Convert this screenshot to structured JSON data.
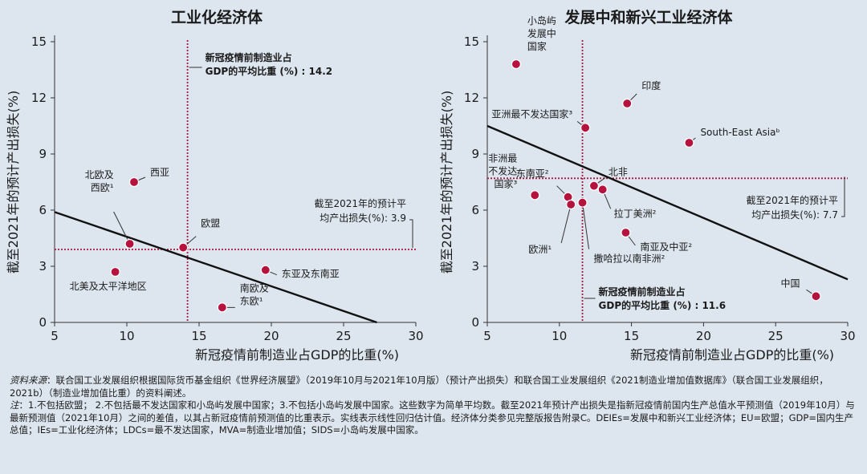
{
  "chart_data": [
    {
      "type": "scatter",
      "title": "工业化经济体",
      "xlabel": "新冠疫情前制造业占GDP的比重(%)",
      "ylabel": "截至2021年的预计产出损失(%)",
      "xlim": [
        5,
        30
      ],
      "ylim": [
        0,
        15
      ],
      "xticks": [
        "5",
        "10",
        "15",
        "20",
        "25",
        "30"
      ],
      "yticks": [
        "0",
        "3",
        "6",
        "9",
        "12",
        "15"
      ],
      "points": [
        {
          "x": 10.5,
          "y": 7.5,
          "label": [
            "西亚"
          ]
        },
        {
          "x": 10.2,
          "y": 4.2,
          "label": [
            "北欧及",
            "西欧¹"
          ]
        },
        {
          "x": 9.2,
          "y": 2.7,
          "label": [
            "北美及太平洋地区"
          ]
        },
        {
          "x": 13.9,
          "y": 4.0,
          "label": [
            "欧盟"
          ]
        },
        {
          "x": 19.6,
          "y": 2.8,
          "label": [
            "东亚及东南亚"
          ]
        },
        {
          "x": 16.6,
          "y": 0.8,
          "label": [
            "南欧及",
            "东欧¹"
          ]
        }
      ],
      "trendline": {
        "x": [
          5,
          27.3
        ],
        "y": [
          5.9,
          0
        ]
      },
      "vline": {
        "x": 14.2,
        "label": [
          "新冠疫情前制造业占",
          "GDP的平均比重 (%) : 14.2"
        ]
      },
      "hline": {
        "y": 3.9,
        "label": [
          "截至2021年的预计平",
          "均产出损失(%): 3.9"
        ]
      }
    },
    {
      "type": "scatter",
      "title": "发展中和新兴工业经济体",
      "xlabel": "新冠疫情前制造业占GDP的比重(%)",
      "ylabel": "截至2021年的预计产出损失(%)",
      "xlim": [
        5,
        30
      ],
      "ylim": [
        0,
        15
      ],
      "xticks": [
        "5",
        "10",
        "15",
        "20",
        "25",
        "30"
      ],
      "yticks": [
        "0",
        "3",
        "6",
        "9",
        "12",
        "15"
      ],
      "points": [
        {
          "x": 7.0,
          "y": 13.8,
          "label": [
            "小岛屿",
            "发展中",
            "国家"
          ]
        },
        {
          "x": 14.7,
          "y": 11.7,
          "label": [
            "印度"
          ]
        },
        {
          "x": 11.8,
          "y": 10.4,
          "label": [
            "亚洲最不发达国家³"
          ]
        },
        {
          "x": 19.0,
          "y": 9.6,
          "label": [
            "South-East Asiaᵇ"
          ]
        },
        {
          "x": 12.4,
          "y": 7.3,
          "label": [
            "北非"
          ]
        },
        {
          "x": 10.6,
          "y": 6.7,
          "label": [
            "东南亚²"
          ]
        },
        {
          "x": 13.0,
          "y": 7.1,
          "label": [
            "拉丁美洲²"
          ]
        },
        {
          "x": 8.3,
          "y": 6.8,
          "label": [
            "非洲最",
            "不发达",
            "国家³"
          ]
        },
        {
          "x": 10.8,
          "y": 6.3,
          "label": [
            "欧洲¹"
          ]
        },
        {
          "x": 11.6,
          "y": 6.4,
          "label": [
            "撒哈拉以南非洲²"
          ]
        },
        {
          "x": 14.6,
          "y": 4.8,
          "label": [
            "南亚及中亚²"
          ]
        },
        {
          "x": 27.8,
          "y": 1.4,
          "label": [
            "中国"
          ]
        }
      ],
      "trendline": {
        "x": [
          5,
          30
        ],
        "y": [
          10.5,
          2.3
        ]
      },
      "vline": {
        "x": 11.6,
        "label": [
          "新冠疫情前制造业占",
          "GDP的平均比重 (%) : 11.6"
        ]
      },
      "hline": {
        "y": 7.7,
        "label": [
          "截至2021年的预计平",
          "均产出损失(%): 7.7"
        ]
      }
    }
  ],
  "notes": {
    "source_label": "资料来源",
    "source_text": "：联合国工业发展组织根据国际货币基金组织《世界经济展望》（2019年10月与2021年10月版）（预计产出损失）和联合国工业发展组织《2021制造业增加值数据库》（联合国工业发展组织，2021b）（制造业增加值比重）的资料阐述。",
    "note_label": "注",
    "note_text": "：1.不包括欧盟； 2.不包括最不发达国家和小岛屿发展中国家；3.不包括小岛屿发展中国家。这些数字为简单平均数。截至2021年预计产出损失是指新冠疫情前国内生产总值水平预测值（2019年10月）与最新预测值（2021年10月）之间的差值，以其占新冠疫情前预测值的比重表示。实线表示线性回归估计值。经济体分类参见完整版报告附录C。DEIEs=发展中和新兴工业经济体；EU=欧盟；GDP=国内生产总值；IEs=工业化经济体；LDCs=最不发达国家，MVA=制造业增加值；SIDS=小岛屿发展中国家。"
  },
  "colors": {
    "background": "#dde6ef",
    "point": "#b5123d",
    "reference_line": "#a8173f",
    "trend_line": "#111111"
  }
}
